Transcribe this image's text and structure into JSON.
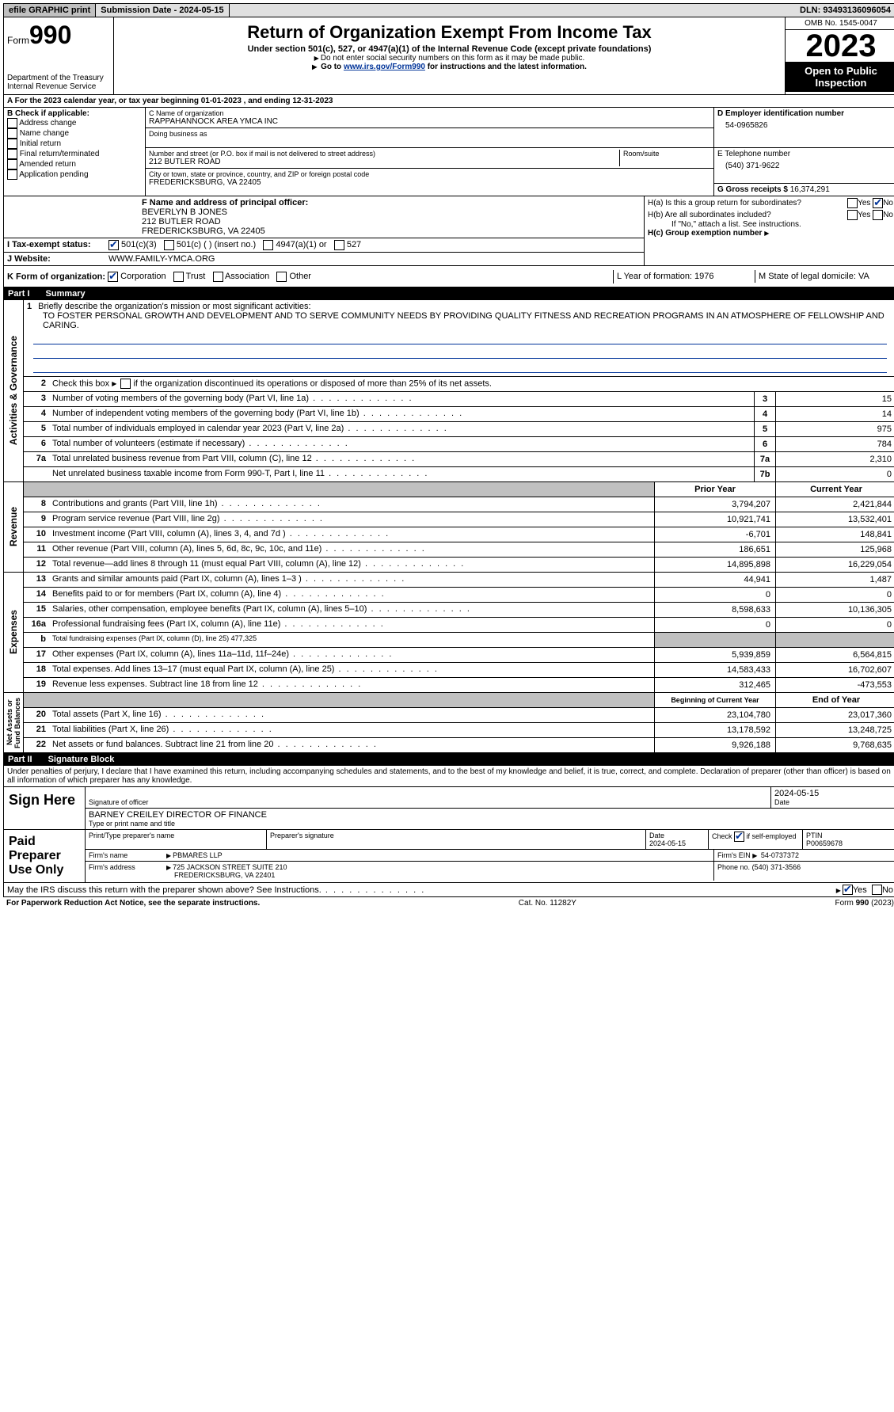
{
  "topbar": {
    "efile": "efile GRAPHIC print",
    "subdate_label": "Submission Date - 2024-05-15",
    "dln": "DLN: 93493136096054"
  },
  "header": {
    "form_label": "Form",
    "form_num": "990",
    "dept": "Department of the Treasury\nInternal Revenue Service",
    "title": "Return of Organization Exempt From Income Tax",
    "sub1": "Under section 501(c), 527, or 4947(a)(1) of the Internal Revenue Code (except private foundations)",
    "sub2": "Do not enter social security numbers on this form as it may be made public.",
    "sub3_pre": "Go to ",
    "sub3_link": "www.irs.gov/Form990",
    "sub3_post": " for instructions and the latest information.",
    "omb": "OMB No. 1545-0047",
    "year": "2023",
    "open": "Open to Public Inspection"
  },
  "rowA": "A For the 2023 calendar year, or tax year beginning 01-01-2023    , and ending 12-31-2023",
  "boxB": {
    "label": "B Check if applicable:",
    "items": [
      "Address change",
      "Name change",
      "Initial return",
      "Final return/terminated",
      "Amended return",
      "Application pending"
    ]
  },
  "boxC": {
    "name_label": "C Name of organization",
    "name": "RAPPAHANNOCK AREA YMCA INC",
    "dba_label": "Doing business as",
    "street_label": "Number and street (or P.O. box if mail is not delivered to street address)",
    "room_label": "Room/suite",
    "street": "212 BUTLER ROAD",
    "city_label": "City or town, state or province, country, and ZIP or foreign postal code",
    "city": "FREDERICKSBURG, VA  22405"
  },
  "boxD": {
    "label": "D Employer identification number",
    "val": "54-0965826"
  },
  "boxE": {
    "label": "E Telephone number",
    "val": "(540) 371-9622"
  },
  "boxG": {
    "label": "G Gross receipts $",
    "val": "16,374,291"
  },
  "boxF": {
    "label": "F  Name and address of principal officer:",
    "name": "BEVERLYN B JONES",
    "street": "212 BUTLER ROAD",
    "city": "FREDERICKSBURG, VA  22405"
  },
  "boxH": {
    "a": "H(a)  Is this a group return for subordinates?",
    "b": "H(b)  Are all subordinates included?",
    "note": "If \"No,\" attach a list. See instructions.",
    "c": "H(c)  Group exemption number",
    "yes": "Yes",
    "no": "No"
  },
  "boxI": {
    "label": "I    Tax-exempt status:",
    "opts": [
      "501(c)(3)",
      "501(c) (  ) (insert no.)",
      "4947(a)(1) or",
      "527"
    ]
  },
  "boxJ": {
    "label": "J    Website:",
    "val": "WWW.FAMILY-YMCA.ORG"
  },
  "boxK": {
    "label": "K Form of organization:",
    "opts": [
      "Corporation",
      "Trust",
      "Association",
      "Other"
    ]
  },
  "boxL": {
    "label": "L Year of formation: 1976"
  },
  "boxM": {
    "label": "M State of legal domicile: VA"
  },
  "part1": {
    "num": "Part I",
    "title": "Summary"
  },
  "gov": {
    "label": "Activities & Governance",
    "l1": "Briefly describe the organization's mission or most significant activities:",
    "mission": "TO FOSTER PERSONAL GROWTH AND DEVELOPMENT AND TO SERVE COMMUNITY NEEDS BY PROVIDING QUALITY FITNESS AND RECREATION PROGRAMS IN AN ATMOSPHERE OF FELLOWSHIP AND CARING.",
    "l2": "Check this box        if the organization discontinued its operations or disposed of more than 25% of its net assets.",
    "lines": [
      {
        "n": "3",
        "t": "Number of voting members of the governing body (Part VI, line 1a)",
        "b": "3",
        "v": "15"
      },
      {
        "n": "4",
        "t": "Number of independent voting members of the governing body (Part VI, line 1b)",
        "b": "4",
        "v": "14"
      },
      {
        "n": "5",
        "t": "Total number of individuals employed in calendar year 2023 (Part V, line 2a)",
        "b": "5",
        "v": "975"
      },
      {
        "n": "6",
        "t": "Total number of volunteers (estimate if necessary)",
        "b": "6",
        "v": "784"
      },
      {
        "n": "7a",
        "t": "Total unrelated business revenue from Part VIII, column (C), line 12",
        "b": "7a",
        "v": "2,310"
      },
      {
        "n": "",
        "t": "Net unrelated business taxable income from Form 990-T, Part I, line 11",
        "b": "7b",
        "v": "0"
      }
    ]
  },
  "rev": {
    "label": "Revenue",
    "hdr_prior": "Prior Year",
    "hdr_curr": "Current Year",
    "lines": [
      {
        "n": "8",
        "t": "Contributions and grants (Part VIII, line 1h)",
        "p": "3,794,207",
        "c": "2,421,844"
      },
      {
        "n": "9",
        "t": "Program service revenue (Part VIII, line 2g)",
        "p": "10,921,741",
        "c": "13,532,401"
      },
      {
        "n": "10",
        "t": "Investment income (Part VIII, column (A), lines 3, 4, and 7d )",
        "p": "-6,701",
        "c": "148,841"
      },
      {
        "n": "11",
        "t": "Other revenue (Part VIII, column (A), lines 5, 6d, 8c, 9c, 10c, and 11e)",
        "p": "186,651",
        "c": "125,968"
      },
      {
        "n": "12",
        "t": "Total revenue—add lines 8 through 11 (must equal Part VIII, column (A), line 12)",
        "p": "14,895,898",
        "c": "16,229,054"
      }
    ]
  },
  "exp": {
    "label": "Expenses",
    "lines": [
      {
        "n": "13",
        "t": "Grants and similar amounts paid (Part IX, column (A), lines 1–3 )",
        "p": "44,941",
        "c": "1,487"
      },
      {
        "n": "14",
        "t": "Benefits paid to or for members (Part IX, column (A), line 4)",
        "p": "0",
        "c": "0"
      },
      {
        "n": "15",
        "t": "Salaries, other compensation, employee benefits (Part IX, column (A), lines 5–10)",
        "p": "8,598,633",
        "c": "10,136,305"
      },
      {
        "n": "16a",
        "t": "Professional fundraising fees (Part IX, column (A), line 11e)",
        "p": "0",
        "c": "0"
      },
      {
        "n": "b",
        "t": "Total fundraising expenses (Part IX, column (D), line 25) 477,325",
        "p": "",
        "c": "",
        "grey": true
      },
      {
        "n": "17",
        "t": "Other expenses (Part IX, column (A), lines 11a–11d, 11f–24e)",
        "p": "5,939,859",
        "c": "6,564,815"
      },
      {
        "n": "18",
        "t": "Total expenses. Add lines 13–17 (must equal Part IX, column (A), line 25)",
        "p": "14,583,433",
        "c": "16,702,607"
      },
      {
        "n": "19",
        "t": "Revenue less expenses. Subtract line 18 from line 12",
        "p": "312,465",
        "c": "-473,553"
      }
    ]
  },
  "net": {
    "label": "Net Assets or Fund Balances",
    "hdr_beg": "Beginning of Current Year",
    "hdr_end": "End of Year",
    "lines": [
      {
        "n": "20",
        "t": "Total assets (Part X, line 16)",
        "p": "23,104,780",
        "c": "23,017,360"
      },
      {
        "n": "21",
        "t": "Total liabilities (Part X, line 26)",
        "p": "13,178,592",
        "c": "13,248,725"
      },
      {
        "n": "22",
        "t": "Net assets or fund balances. Subtract line 21 from line 20",
        "p": "9,926,188",
        "c": "9,768,635"
      }
    ]
  },
  "part2": {
    "num": "Part II",
    "title": "Signature Block"
  },
  "perjury": "Under penalties of perjury, I declare that I have examined this return, including accompanying schedules and statements, and to the best of my knowledge and belief, it is true, correct, and complete. Declaration of preparer (other than officer) is based on all information of which preparer has any knowledge.",
  "sign": {
    "here": "Sign Here",
    "sig_label": "Signature of officer",
    "date_label": "Date",
    "date": "2024-05-15",
    "name": "BARNEY CREILEY  DIRECTOR OF FINANCE",
    "type_label": "Type or print name and title"
  },
  "paid": {
    "label": "Paid Preparer Use Only",
    "prep_name_label": "Print/Type preparer's name",
    "prep_sig_label": "Preparer's signature",
    "date_label": "Date",
    "date": "2024-05-15",
    "check_label": "Check         if self-employed",
    "ptin_label": "PTIN",
    "ptin": "P00659678",
    "firm_name_label": "Firm's name",
    "firm_name": "PBMARES LLP",
    "firm_ein_label": "Firm's EIN",
    "firm_ein": "54-0737372",
    "firm_addr_label": "Firm's address",
    "firm_addr": "725 JACKSON STREET SUITE 210",
    "firm_city": "FREDERICKSBURG, VA  22401",
    "phone_label": "Phone no.",
    "phone": "(540) 371-3566"
  },
  "discuss": "May the IRS discuss this return with the preparer shown above? See Instructions.",
  "footer": {
    "pra": "For Paperwork Reduction Act Notice, see the separate instructions.",
    "cat": "Cat. No. 11282Y",
    "form": "Form 990 (2023)"
  }
}
